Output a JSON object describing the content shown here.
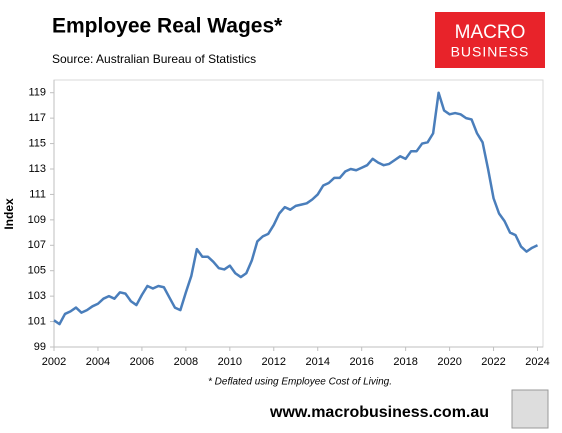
{
  "chart_data": {
    "type": "line",
    "title": "Employee Real Wages*",
    "subtitle": "Source: Australian Bureau of Statistics",
    "y_label": "Index",
    "note": "* Deflated using Employee Cost of Living.",
    "x": [
      2002,
      2002.25,
      2002.5,
      2002.75,
      2003,
      2003.25,
      2003.5,
      2003.75,
      2004,
      2004.25,
      2004.5,
      2004.75,
      2005,
      2005.25,
      2005.5,
      2005.75,
      2006,
      2006.25,
      2006.5,
      2006.75,
      2007,
      2007.25,
      2007.5,
      2007.75,
      2008,
      2008.25,
      2008.5,
      2008.75,
      2009,
      2009.25,
      2009.5,
      2009.75,
      2010,
      2010.25,
      2010.5,
      2010.75,
      2011,
      2011.25,
      2011.5,
      2011.75,
      2012,
      2012.25,
      2012.5,
      2012.75,
      2013,
      2013.25,
      2013.5,
      2013.75,
      2014,
      2014.25,
      2014.5,
      2014.75,
      2015,
      2015.25,
      2015.5,
      2015.75,
      2016,
      2016.25,
      2016.5,
      2016.75,
      2017,
      2017.25,
      2017.5,
      2017.75,
      2018,
      2018.25,
      2018.5,
      2018.75,
      2019,
      2019.25,
      2019.5,
      2019.75,
      2020,
      2020.25,
      2020.5,
      2020.75,
      2021,
      2021.25,
      2021.5,
      2021.75,
      2022,
      2022.25,
      2022.5,
      2022.75,
      2023,
      2023.25,
      2023.5,
      2023.75,
      2024
    ],
    "series": [
      {
        "name": "Employee Real Wages",
        "color": "#4a7ebb",
        "values": [
          101.1,
          100.8,
          101.6,
          101.8,
          102.1,
          101.7,
          101.9,
          102.2,
          102.4,
          102.8,
          103.0,
          102.8,
          103.3,
          103.2,
          102.6,
          102.3,
          103.1,
          103.8,
          103.6,
          103.8,
          103.7,
          102.9,
          102.1,
          101.9,
          103.3,
          104.6,
          106.7,
          106.1,
          106.1,
          105.7,
          105.2,
          105.1,
          105.4,
          104.8,
          104.5,
          104.8,
          105.8,
          107.3,
          107.7,
          107.9,
          108.6,
          109.5,
          110.0,
          109.8,
          110.1,
          110.2,
          110.3,
          110.6,
          111.0,
          111.7,
          111.9,
          112.3,
          112.3,
          112.8,
          113.0,
          112.9,
          113.1,
          113.3,
          113.8,
          113.5,
          113.3,
          113.4,
          113.7,
          114.0,
          113.8,
          114.4,
          114.4,
          115.0,
          115.1,
          115.8,
          119.0,
          117.6,
          117.3,
          117.4,
          117.3,
          117.0,
          116.9,
          115.8,
          115.1,
          113.0,
          110.7,
          109.5,
          108.9,
          108.0,
          107.8,
          106.9,
          106.5,
          106.8,
          107.0
        ]
      }
    ],
    "xlim": [
      2002,
      2024.25
    ],
    "xticks": [
      2002,
      2004,
      2006,
      2008,
      2010,
      2012,
      2014,
      2016,
      2018,
      2020,
      2022,
      2024
    ],
    "ylim": [
      99,
      120
    ],
    "yticks": [
      99,
      101,
      103,
      105,
      107,
      109,
      111,
      113,
      115,
      117,
      119
    ],
    "grid": false
  },
  "logo": {
    "line1": "MACRO",
    "line2": "BUSINESS"
  },
  "footer": {
    "website": "www.macrobusiness.com.au"
  }
}
